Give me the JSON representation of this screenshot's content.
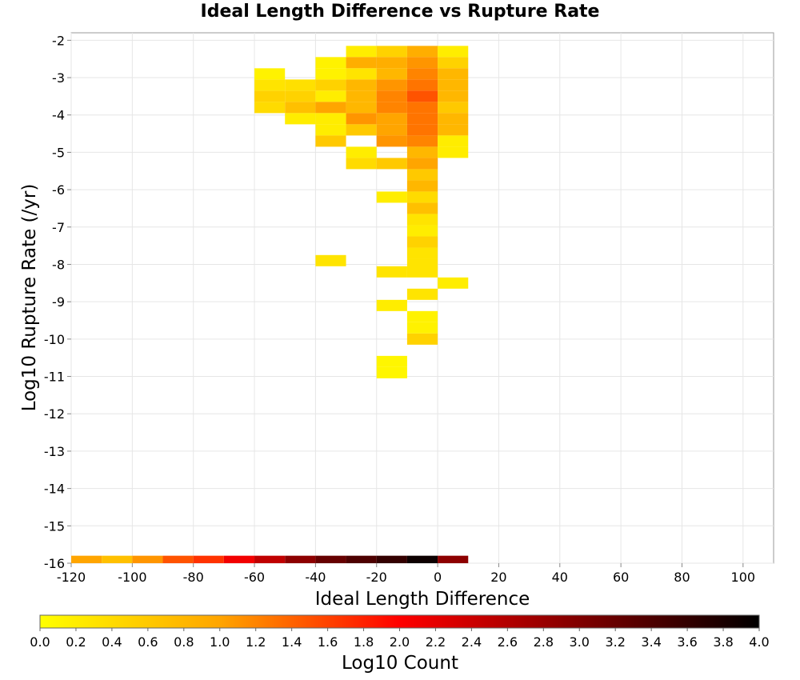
{
  "chart_data": {
    "type": "heatmap",
    "title": "Ideal Length Difference vs Rupture Rate",
    "xlabel": "Ideal Length Difference",
    "ylabel": "Log10 Rupture Rate (/yr)",
    "colorbar_label": "Log10 Count",
    "xlim": [
      -120,
      110
    ],
    "ylim": [
      -16,
      -1.8
    ],
    "x_ticks": [
      "-120",
      "-100",
      "-80",
      "-60",
      "-40",
      "-20",
      "0",
      "20",
      "40",
      "60",
      "80",
      "100"
    ],
    "y_ticks": [
      "-2",
      "-3",
      "-4",
      "-5",
      "-6",
      "-7",
      "-8",
      "-9",
      "-10",
      "-11",
      "-12",
      "-13",
      "-14",
      "-15",
      "-16"
    ],
    "colorbar_ticks": [
      "0.0",
      "0.2",
      "0.4",
      "0.6",
      "0.8",
      "1.0",
      "1.2",
      "1.4",
      "1.6",
      "1.8",
      "2.0",
      "2.2",
      "2.4",
      "2.6",
      "2.8",
      "3.0",
      "3.2",
      "3.4",
      "3.6",
      "3.8",
      "4.0"
    ],
    "color_range": [
      0,
      4
    ],
    "colormap": [
      "#ffff00",
      "#ffa500",
      "#ff0000",
      "#800000",
      "#000000"
    ],
    "grid": true,
    "x_bin_width": 10,
    "y_bin_height": 0.3,
    "cells": [
      {
        "x": -25,
        "y": -2.3,
        "v": 0.2
      },
      {
        "x": -15,
        "y": -2.3,
        "v": 0.5
      },
      {
        "x": -5,
        "y": -2.3,
        "v": 0.9
      },
      {
        "x": 5,
        "y": -2.3,
        "v": 0.2
      },
      {
        "x": -35,
        "y": -2.6,
        "v": 0.15
      },
      {
        "x": -25,
        "y": -2.6,
        "v": 0.9
      },
      {
        "x": -15,
        "y": -2.6,
        "v": 0.9
      },
      {
        "x": -5,
        "y": -2.6,
        "v": 1.1
      },
      {
        "x": 5,
        "y": -2.6,
        "v": 0.5
      },
      {
        "x": -55,
        "y": -2.9,
        "v": 0.15
      },
      {
        "x": -35,
        "y": -2.9,
        "v": 0.15
      },
      {
        "x": -25,
        "y": -2.9,
        "v": 0.3
      },
      {
        "x": -15,
        "y": -2.9,
        "v": 0.8
      },
      {
        "x": -5,
        "y": -2.9,
        "v": 1.2
      },
      {
        "x": 5,
        "y": -2.9,
        "v": 0.8
      },
      {
        "x": -55,
        "y": -3.2,
        "v": 0.3
      },
      {
        "x": -45,
        "y": -3.2,
        "v": 0.35
      },
      {
        "x": -35,
        "y": -3.2,
        "v": 0.5
      },
      {
        "x": -25,
        "y": -3.2,
        "v": 0.8
      },
      {
        "x": -15,
        "y": -3.2,
        "v": 1.1
      },
      {
        "x": -5,
        "y": -3.2,
        "v": 1.3
      },
      {
        "x": 5,
        "y": -3.2,
        "v": 0.8
      },
      {
        "x": -55,
        "y": -3.5,
        "v": 0.5
      },
      {
        "x": -45,
        "y": -3.5,
        "v": 0.5
      },
      {
        "x": -35,
        "y": -3.5,
        "v": 0.2
      },
      {
        "x": -25,
        "y": -3.5,
        "v": 0.8
      },
      {
        "x": -15,
        "y": -3.5,
        "v": 1.2
      },
      {
        "x": -5,
        "y": -3.5,
        "v": 1.5
      },
      {
        "x": 5,
        "y": -3.5,
        "v": 0.8
      },
      {
        "x": -55,
        "y": -3.8,
        "v": 0.4
      },
      {
        "x": -45,
        "y": -3.8,
        "v": 0.7
      },
      {
        "x": -35,
        "y": -3.8,
        "v": 1.0
      },
      {
        "x": -25,
        "y": -3.8,
        "v": 0.8
      },
      {
        "x": -15,
        "y": -3.8,
        "v": 1.2
      },
      {
        "x": -5,
        "y": -3.8,
        "v": 1.3
      },
      {
        "x": 5,
        "y": -3.8,
        "v": 0.6
      },
      {
        "x": -45,
        "y": -4.1,
        "v": 0.2
      },
      {
        "x": -35,
        "y": -4.1,
        "v": 0.2
      },
      {
        "x": -25,
        "y": -4.1,
        "v": 1.1
      },
      {
        "x": -15,
        "y": -4.1,
        "v": 1.0
      },
      {
        "x": -5,
        "y": -4.1,
        "v": 1.3
      },
      {
        "x": 5,
        "y": -4.1,
        "v": 0.8
      },
      {
        "x": -35,
        "y": -4.4,
        "v": 0.2
      },
      {
        "x": -25,
        "y": -4.4,
        "v": 0.6
      },
      {
        "x": -15,
        "y": -4.4,
        "v": 1.0
      },
      {
        "x": -5,
        "y": -4.4,
        "v": 1.3
      },
      {
        "x": 5,
        "y": -4.4,
        "v": 0.8
      },
      {
        "x": -35,
        "y": -4.7,
        "v": 0.6
      },
      {
        "x": -15,
        "y": -4.7,
        "v": 1.1
      },
      {
        "x": -5,
        "y": -4.7,
        "v": 1.2
      },
      {
        "x": 5,
        "y": -4.7,
        "v": 0.2
      },
      {
        "x": -25,
        "y": -5.0,
        "v": 0.2
      },
      {
        "x": -5,
        "y": -5.0,
        "v": 0.8
      },
      {
        "x": 5,
        "y": -5.0,
        "v": 0.2
      },
      {
        "x": -25,
        "y": -5.3,
        "v": 0.4
      },
      {
        "x": -15,
        "y": -5.3,
        "v": 0.6
      },
      {
        "x": -5,
        "y": -5.3,
        "v": 1.0
      },
      {
        "x": -5,
        "y": -5.6,
        "v": 0.6
      },
      {
        "x": -5,
        "y": -5.9,
        "v": 0.8
      },
      {
        "x": -15,
        "y": -6.2,
        "v": 0.2
      },
      {
        "x": -5,
        "y": -6.2,
        "v": 0.4
      },
      {
        "x": -5,
        "y": -6.5,
        "v": 0.7
      },
      {
        "x": -5,
        "y": -6.8,
        "v": 0.3
      },
      {
        "x": -5,
        "y": -7.1,
        "v": 0.2
      },
      {
        "x": -5,
        "y": -7.4,
        "v": 0.5
      },
      {
        "x": -5,
        "y": -7.7,
        "v": 0.3
      },
      {
        "x": -35,
        "y": -7.9,
        "v": 0.3
      },
      {
        "x": -5,
        "y": -8.0,
        "v": 0.3
      },
      {
        "x": -15,
        "y": -8.2,
        "v": 0.3
      },
      {
        "x": -5,
        "y": -8.2,
        "v": 0.3
      },
      {
        "x": 5,
        "y": -8.5,
        "v": 0.2
      },
      {
        "x": -5,
        "y": -8.8,
        "v": 0.3
      },
      {
        "x": -15,
        "y": -9.1,
        "v": 0.2
      },
      {
        "x": -5,
        "y": -9.4,
        "v": 0.15
      },
      {
        "x": -5,
        "y": -9.7,
        "v": 0.15
      },
      {
        "x": -5,
        "y": -10.0,
        "v": 0.5
      },
      {
        "x": -15,
        "y": -10.6,
        "v": 0.1
      },
      {
        "x": -15,
        "y": -10.9,
        "v": 0.1
      },
      {
        "x": -115,
        "y": -15.95,
        "v": 1.0
      },
      {
        "x": -105,
        "y": -15.95,
        "v": 0.7
      },
      {
        "x": -95,
        "y": -15.95,
        "v": 1.1
      },
      {
        "x": -85,
        "y": -15.95,
        "v": 1.5
      },
      {
        "x": -75,
        "y": -15.95,
        "v": 1.7
      },
      {
        "x": -65,
        "y": -15.95,
        "v": 2.1
      },
      {
        "x": -55,
        "y": -15.95,
        "v": 2.5
      },
      {
        "x": -45,
        "y": -15.95,
        "v": 2.9
      },
      {
        "x": -35,
        "y": -15.95,
        "v": 3.2
      },
      {
        "x": -25,
        "y": -15.95,
        "v": 3.4
      },
      {
        "x": -15,
        "y": -15.95,
        "v": 3.6
      },
      {
        "x": -5,
        "y": -15.95,
        "v": 3.9
      },
      {
        "x": 5,
        "y": -15.95,
        "v": 2.9
      }
    ]
  }
}
